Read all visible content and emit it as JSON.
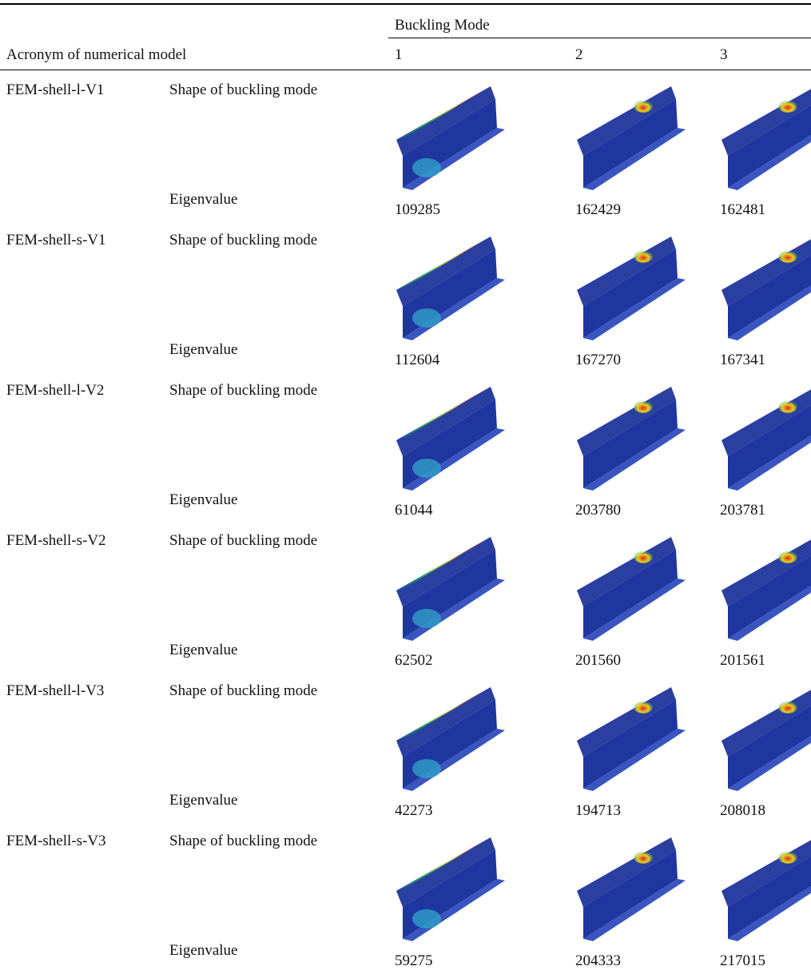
{
  "header": {
    "group_title": "Buckling Mode",
    "row_header": "Acronym of numerical model",
    "modes": [
      1,
      2,
      3
    ]
  },
  "rows": [
    {
      "model": "FEM-shell-l-V1",
      "shape_label": "Shape of buckling mode",
      "eigen_label": "Eigenvalue",
      "eigenvalues": [
        109285,
        162429,
        162481
      ]
    },
    {
      "model": "FEM-shell-s-V1",
      "shape_label": "Shape of buckling mode",
      "eigen_label": "Eigenvalue",
      "eigenvalues": [
        112604,
        167270,
        167341
      ]
    },
    {
      "model": "FEM-shell-l-V2",
      "shape_label": "Shape of buckling mode",
      "eigen_label": "Eigenvalue",
      "eigenvalues": [
        61044,
        203780,
        203781
      ]
    },
    {
      "model": "FEM-shell-s-V2",
      "shape_label": "Shape of buckling mode",
      "eigen_label": "Eigenvalue",
      "eigenvalues": [
        62502,
        201560,
        201561
      ]
    },
    {
      "model": "FEM-shell-l-V3",
      "shape_label": "Shape of buckling mode",
      "eigen_label": "Eigenvalue",
      "eigenvalues": [
        42273,
        194713,
        208018
      ]
    },
    {
      "model": "FEM-shell-s-V3",
      "shape_label": "Shape of buckling mode",
      "eigen_label": "Eigenvalue",
      "eigenvalues": [
        59275,
        204333,
        217015
      ]
    }
  ]
}
